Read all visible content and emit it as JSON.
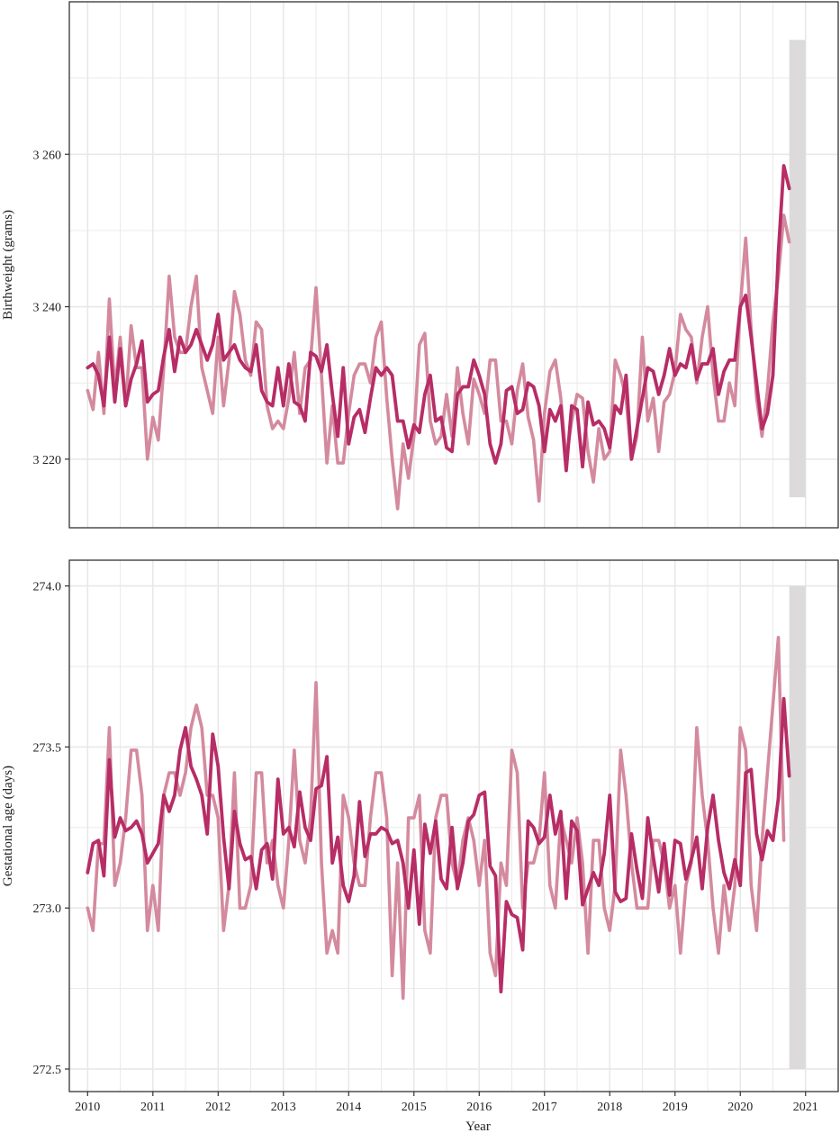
{
  "colors": {
    "series_light": "#d48a9e",
    "series_dark": "#b72d66",
    "highlight": "#dcdada",
    "grid": "#e8e8e8",
    "panel_border": "#333333"
  },
  "chart_data": [
    {
      "type": "line",
      "ylabel": "Birthweight (grams)",
      "xlabel": "",
      "ylim": [
        3211,
        3280
      ],
      "yticks": [
        3220,
        3240,
        3260
      ],
      "ytick_labels": [
        "3 220",
        "3 240",
        "3 260"
      ],
      "xlim": [
        2009.72,
        2021.5
      ],
      "x_start": 2010.0,
      "x_step": 0.08333,
      "grid": true,
      "highlight_band": {
        "x": [
          2020.75,
          2021.0
        ],
        "y": [
          3215,
          3275
        ]
      },
      "series": [
        {
          "color_key": "series_light",
          "values": [
            3229,
            3226.5,
            3234,
            3226,
            3241,
            3229,
            3236,
            3227,
            3237.5,
            3232,
            3232,
            3220,
            3225.5,
            3222.5,
            3232,
            3244,
            3236,
            3234,
            3234,
            3240,
            3244,
            3232,
            3229,
            3226,
            3236,
            3227,
            3233,
            3242,
            3239,
            3233,
            3231,
            3238,
            3237,
            3227,
            3224,
            3225,
            3224,
            3228,
            3234,
            3226,
            3232,
            3233,
            3242.5,
            3231,
            3219.5,
            3227,
            3219.5,
            3219.5,
            3226,
            3231,
            3232.5,
            3232.5,
            3230,
            3236,
            3238,
            3228,
            3220,
            3213.5,
            3222,
            3217.5,
            3223,
            3235,
            3236.5,
            3225,
            3222,
            3223,
            3228.5,
            3223,
            3232,
            3226,
            3222,
            3230.5,
            3228.5,
            3226,
            3233,
            3233,
            3225,
            3225,
            3222,
            3229,
            3232.5,
            3225.5,
            3222.5,
            3214.5,
            3226,
            3231.5,
            3233,
            3228,
            3220,
            3225,
            3228.5,
            3228,
            3221,
            3217,
            3224,
            3220,
            3221,
            3233,
            3231,
            3228,
            3220,
            3223,
            3236,
            3225,
            3228,
            3221,
            3227.5,
            3228.5,
            3231.5,
            3239,
            3237,
            3236,
            3230,
            3236,
            3240,
            3231,
            3225,
            3225,
            3230,
            3227,
            3240,
            3249,
            3237,
            3228,
            3223,
            3229,
            3238,
            3244,
            3252,
            3248.5
          ]
        },
        {
          "color_key": "series_dark",
          "values": [
            3232,
            3232.5,
            3231,
            3227,
            3236,
            3227.5,
            3234.5,
            3227,
            3230.5,
            3232.5,
            3235.5,
            3227.5,
            3228.5,
            3229,
            3233.5,
            3237,
            3231.5,
            3236,
            3234,
            3235,
            3237,
            3235,
            3233,
            3235,
            3239,
            3233,
            3234,
            3235,
            3233,
            3232,
            3231.5,
            3235,
            3229,
            3227.5,
            3227,
            3232,
            3227,
            3232.5,
            3227.5,
            3227,
            3225,
            3234,
            3233.5,
            3231.5,
            3235,
            3228.5,
            3223,
            3232,
            3222,
            3225.5,
            3226.5,
            3223.5,
            3228,
            3232,
            3231,
            3232,
            3231,
            3225,
            3225,
            3221.5,
            3224.5,
            3223.5,
            3228.5,
            3231,
            3225,
            3225.5,
            3221.5,
            3221,
            3228.5,
            3229.5,
            3229.5,
            3233,
            3231,
            3228.5,
            3222,
            3219.5,
            3222,
            3229,
            3229.5,
            3226,
            3226.5,
            3230,
            3229.5,
            3227,
            3221,
            3226.5,
            3225,
            3227,
            3218.5,
            3227,
            3226.5,
            3219,
            3227.5,
            3224.5,
            3225,
            3224,
            3221.5,
            3227,
            3226,
            3231,
            3220,
            3224,
            3228,
            3232,
            3231.5,
            3228.5,
            3231,
            3234.5,
            3231,
            3232.5,
            3232,
            3235,
            3230.5,
            3232.5,
            3232.5,
            3234.5,
            3228.5,
            3231.5,
            3233,
            3233,
            3240,
            3241.5,
            3236,
            3230,
            3224,
            3226,
            3231,
            3247,
            3258.5,
            3255.5
          ]
        }
      ]
    },
    {
      "type": "line",
      "ylabel": "Gestational age (days)",
      "xlabel": "Year",
      "ylim": [
        272.43,
        274.08
      ],
      "yticks": [
        272.5,
        273.0,
        273.5,
        274.0
      ],
      "ytick_labels": [
        "272.5",
        "273.0",
        "273.5",
        "274.0"
      ],
      "xlim": [
        2009.72,
        2021.5
      ],
      "xticks": [
        2010,
        2011,
        2012,
        2013,
        2014,
        2015,
        2016,
        2017,
        2018,
        2019,
        2020,
        2021
      ],
      "xtick_labels": [
        "2010",
        "2011",
        "2012",
        "2013",
        "2014",
        "2015",
        "2016",
        "2017",
        "2018",
        "2019",
        "2020",
        "2021"
      ],
      "x_start": 2010.0,
      "x_step": 0.08333,
      "grid": true,
      "highlight_band": {
        "x": [
          2020.75,
          2021.0
        ],
        "y": [
          272.5,
          274.0
        ]
      },
      "series": [
        {
          "color_key": "series_light",
          "values": [
            273.0,
            272.93,
            273.2,
            273.2,
            273.56,
            273.07,
            273.14,
            273.28,
            273.49,
            273.49,
            273.35,
            272.93,
            273.07,
            272.93,
            273.35,
            273.42,
            273.42,
            273.35,
            273.42,
            273.56,
            273.63,
            273.56,
            273.35,
            273.35,
            273.28,
            272.93,
            273.07,
            273.42,
            273.0,
            273.0,
            273.07,
            273.42,
            273.42,
            273.14,
            273.21,
            273.07,
            273.0,
            273.21,
            273.49,
            273.21,
            273.14,
            273.28,
            273.7,
            273.14,
            272.86,
            272.93,
            272.86,
            273.35,
            273.28,
            273.14,
            273.07,
            273.07,
            273.28,
            273.42,
            273.42,
            273.28,
            272.79,
            273.14,
            272.72,
            273.28,
            273.28,
            273.35,
            272.93,
            272.86,
            273.28,
            273.35,
            273.35,
            273.14,
            273.07,
            273.21,
            273.28,
            273.21,
            273.07,
            273.21,
            272.86,
            272.79,
            273.14,
            273.07,
            273.49,
            273.42,
            273.0,
            273.14,
            273.14,
            273.21,
            273.42,
            273.07,
            273.0,
            273.28,
            273.21,
            273.14,
            273.28,
            273.14,
            272.86,
            273.21,
            273.21,
            273.0,
            272.93,
            273.07,
            273.49,
            273.35,
            273.14,
            273.0,
            273.0,
            273.0,
            273.21,
            273.21,
            273.14,
            273.0,
            273.07,
            272.86,
            273.07,
            273.14,
            273.56,
            273.35,
            273.21,
            273.0,
            272.86,
            273.07,
            272.93,
            273.07,
            273.56,
            273.49,
            273.07,
            272.93,
            273.21,
            273.42,
            273.63,
            273.84,
            273.21
          ]
        },
        {
          "color_key": "series_dark",
          "values": [
            273.11,
            273.2,
            273.21,
            273.1,
            273.46,
            273.22,
            273.28,
            273.24,
            273.25,
            273.27,
            273.23,
            273.14,
            273.17,
            273.2,
            273.35,
            273.3,
            273.35,
            273.49,
            273.56,
            273.44,
            273.4,
            273.35,
            273.23,
            273.54,
            273.44,
            273.22,
            273.06,
            273.3,
            273.2,
            273.15,
            273.16,
            273.06,
            273.18,
            273.2,
            273.09,
            273.4,
            273.23,
            273.25,
            273.19,
            273.36,
            273.25,
            273.21,
            273.37,
            273.38,
            273.47,
            273.14,
            273.22,
            273.07,
            273.02,
            273.1,
            273.33,
            273.16,
            273.23,
            273.23,
            273.25,
            273.24,
            273.2,
            273.21,
            273.14,
            273.0,
            273.18,
            272.95,
            273.26,
            273.17,
            273.27,
            273.09,
            273.06,
            273.25,
            273.06,
            273.14,
            273.27,
            273.29,
            273.35,
            273.36,
            273.13,
            273.1,
            272.74,
            273.02,
            272.98,
            272.97,
            272.87,
            273.27,
            273.25,
            273.2,
            273.22,
            273.35,
            273.23,
            273.3,
            273.03,
            273.27,
            273.24,
            273.01,
            273.06,
            273.11,
            273.07,
            273.17,
            273.35,
            273.05,
            273.02,
            273.03,
            273.23,
            273.12,
            273.03,
            273.28,
            273.16,
            273.05,
            273.2,
            273.04,
            273.21,
            273.2,
            273.09,
            273.15,
            273.22,
            273.06,
            273.25,
            273.35,
            273.21,
            273.11,
            273.06,
            273.15,
            273.07,
            273.42,
            273.43,
            273.23,
            273.15,
            273.24,
            273.21,
            273.34,
            273.65,
            273.41
          ]
        }
      ]
    }
  ]
}
